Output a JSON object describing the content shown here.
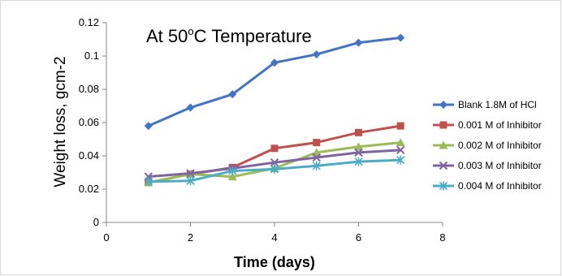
{
  "chart_data": {
    "type": "line",
    "title_main": "At 50",
    "title_sup": "o",
    "title_rest": "C Temperature",
    "xlabel": "Time (days)",
    "ylabel": "Weight loss, gcm-2",
    "xlim": [
      0,
      8
    ],
    "ylim": [
      0,
      0.12
    ],
    "x_ticks": [
      "0",
      "2",
      "4",
      "6",
      "8"
    ],
    "y_ticks": [
      "0",
      "0.02",
      "0.04",
      "0.06",
      "0.08",
      "0.1",
      "0.12"
    ],
    "grid": false,
    "legend_position": "right",
    "x": [
      1,
      2,
      3,
      4,
      5,
      6,
      7
    ],
    "series": [
      {
        "name": "Blank 1.8M of HCl",
        "color": "#4472C4",
        "marker": "diamond",
        "values": [
          0.058,
          0.069,
          0.077,
          0.096,
          0.101,
          0.108,
          0.111
        ]
      },
      {
        "name": "0.001 M of Inhibitor",
        "color": "#C0504D",
        "marker": "square",
        "values": [
          0.024,
          0.029,
          0.033,
          0.0445,
          0.048,
          0.054,
          0.058
        ]
      },
      {
        "name": "0.002 M of Inhibitor",
        "color": "#9BBB59",
        "marker": "triangle",
        "values": [
          0.024,
          0.029,
          0.0275,
          0.0325,
          0.042,
          0.0455,
          0.048
        ]
      },
      {
        "name": "0.003 M of Inhibitor",
        "color": "#8064A2",
        "marker": "x",
        "values": [
          0.0275,
          0.0295,
          0.0325,
          0.036,
          0.039,
          0.042,
          0.0435
        ]
      },
      {
        "name": "0.004 M of Inhibitor",
        "color": "#4BACC6",
        "marker": "star",
        "values": [
          0.0245,
          0.025,
          0.031,
          0.032,
          0.034,
          0.0365,
          0.0375
        ]
      }
    ]
  }
}
